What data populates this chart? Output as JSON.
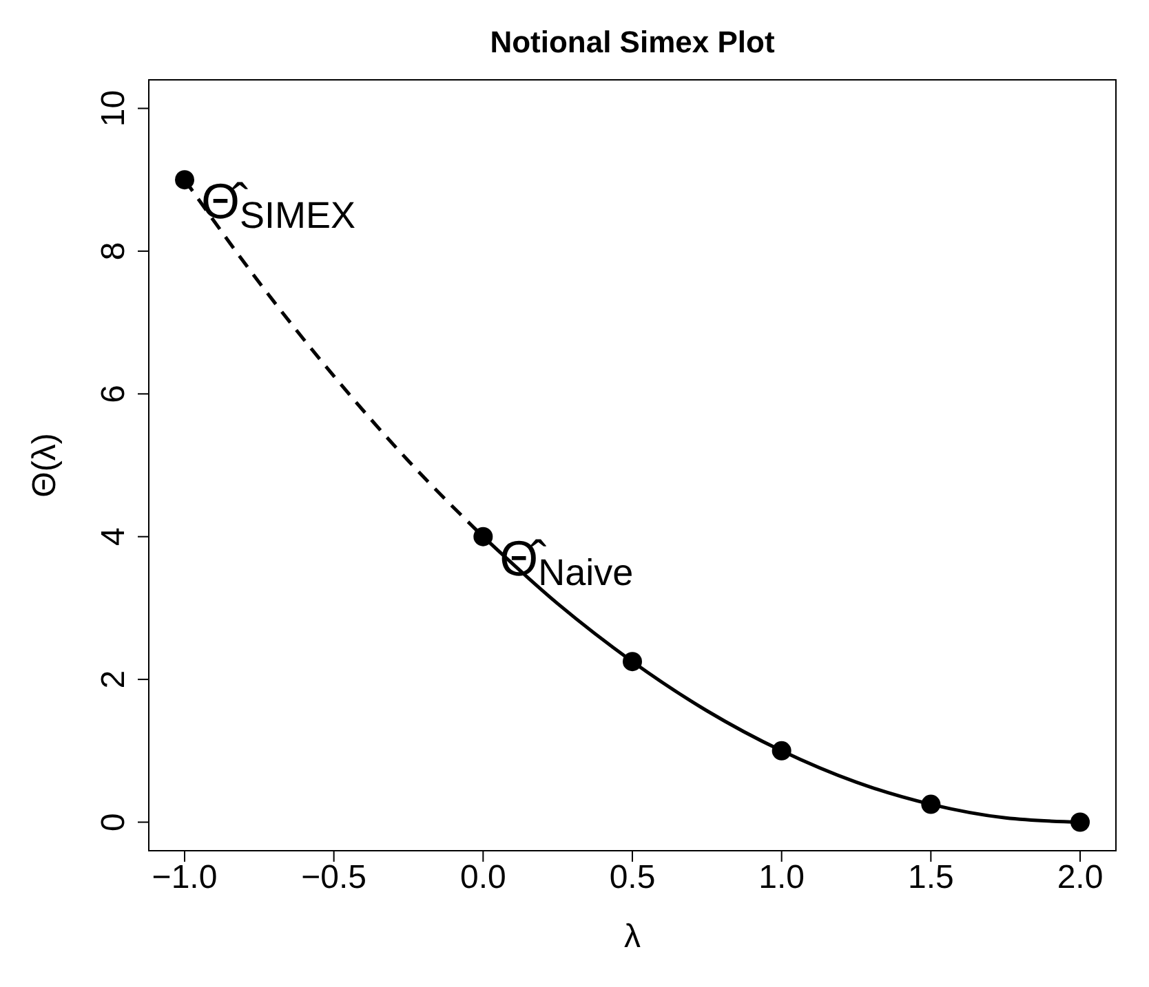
{
  "chart_data": {
    "type": "scatter",
    "title": "Notional Simex Plot",
    "xlabel": "λ",
    "ylabel": "Θ(λ)",
    "xlim": [
      -1.12,
      2.12
    ],
    "ylim": [
      -0.4,
      10.4
    ],
    "xticks": [
      {
        "value": -1,
        "label": "−1.0"
      },
      {
        "value": -0.5,
        "label": "−0.5"
      },
      {
        "value": 0,
        "label": "0.0"
      },
      {
        "value": 0.5,
        "label": "0.5"
      },
      {
        "value": 1,
        "label": "1.0"
      },
      {
        "value": 1.5,
        "label": "1.5"
      },
      {
        "value": 2,
        "label": "2.0"
      }
    ],
    "yticks": [
      0,
      2,
      4,
      6,
      8,
      10
    ],
    "series": [
      {
        "x": [
          -1,
          0,
          0.5,
          1,
          1.5,
          2
        ],
        "values": [
          9,
          4,
          2.25,
          1,
          0.25,
          0
        ],
        "color": "#000000",
        "marker": "circle"
      },
      {
        "type": "line",
        "x": [
          0,
          0.25,
          0.5,
          0.75,
          1,
          1.25,
          1.5,
          1.75,
          2
        ],
        "values": [
          4,
          3.06,
          2.25,
          1.56,
          1,
          0.56,
          0.25,
          0.06,
          0
        ],
        "color": "#000000",
        "line_style": "solid"
      },
      {
        "type": "line",
        "x": [
          -1,
          -0.75,
          -0.5,
          -0.25,
          0
        ],
        "values": [
          9,
          7.56,
          6.25,
          5.06,
          4
        ],
        "color": "#000000",
        "line_style": "dashed"
      }
    ],
    "annotations": [
      {
        "text": "Θ̂$_{SIMEX}$",
        "x": -1,
        "y": 9
      },
      {
        "text": "Θ̂$_{Naive}$",
        "x": 0,
        "y": 4
      }
    ]
  }
}
